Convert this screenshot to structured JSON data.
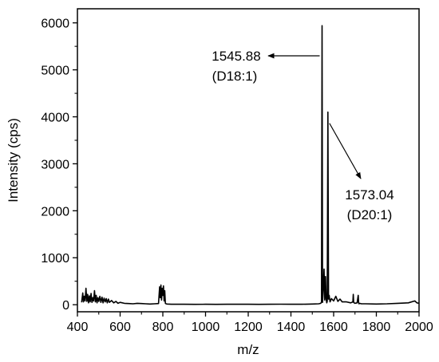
{
  "chart_data": {
    "type": "line",
    "xlabel": "m/z",
    "ylabel": "Intensity (cps)",
    "xlim": [
      400,
      2000
    ],
    "ylim": [
      -150,
      6300
    ],
    "xticks": [
      400,
      600,
      800,
      1000,
      1200,
      1400,
      1600,
      1800,
      2000
    ],
    "yticks": [
      0,
      1000,
      2000,
      3000,
      4000,
      5000,
      6000
    ],
    "grid": false,
    "legend": "none",
    "series": [
      {
        "color": "#000000",
        "x": [
          420,
          425,
          428,
          432,
          436,
          440,
          444,
          448,
          452,
          456,
          460,
          464,
          468,
          472,
          476,
          480,
          484,
          488,
          492,
          496,
          500,
          505,
          510,
          515,
          520,
          525,
          530,
          535,
          540,
          545,
          550,
          560,
          570,
          580,
          590,
          600,
          620,
          640,
          660,
          680,
          700,
          720,
          740,
          760,
          780,
          785,
          788,
          791,
          794,
          797,
          800,
          803,
          806,
          809,
          812,
          815,
          820,
          840,
          860,
          900,
          950,
          1000,
          1050,
          1100,
          1150,
          1200,
          1250,
          1300,
          1350,
          1400,
          1450,
          1500,
          1530,
          1540,
          1543,
          1545.88,
          1548,
          1551,
          1555,
          1558,
          1560,
          1562,
          1565,
          1568,
          1570,
          1573.04,
          1576,
          1579,
          1583,
          1590,
          1600,
          1610,
          1620,
          1630,
          1640,
          1660,
          1680,
          1690,
          1692,
          1694,
          1696,
          1700,
          1710,
          1715,
          1717,
          1719,
          1722,
          1730,
          1750,
          1800,
          1850,
          1900,
          1950,
          1980,
          1990,
          2000
        ],
        "values": [
          50,
          250,
          60,
          180,
          80,
          350,
          70,
          220,
          40,
          190,
          60,
          240,
          50,
          150,
          80,
          300,
          60,
          200,
          40,
          150,
          70,
          180,
          50,
          160,
          40,
          140,
          60,
          130,
          40,
          120,
          50,
          90,
          40,
          70,
          30,
          50,
          30,
          25,
          20,
          30,
          25,
          20,
          15,
          20,
          25,
          380,
          150,
          420,
          100,
          350,
          200,
          400,
          80,
          300,
          30,
          20,
          15,
          10,
          12,
          10,
          8,
          10,
          8,
          10,
          10,
          10,
          8,
          10,
          12,
          10,
          10,
          15,
          20,
          30,
          60,
          5940,
          50,
          300,
          760,
          100,
          250,
          600,
          120,
          40,
          80,
          4100,
          120,
          200,
          60,
          130,
          80,
          180,
          70,
          120,
          60,
          60,
          40,
          60,
          220,
          50,
          40,
          30,
          40,
          200,
          40,
          20,
          30,
          20,
          20,
          15,
          20,
          30,
          40,
          80,
          40,
          30
        ],
        "peaks": [
          {
            "x": 1545.88,
            "y": 5940,
            "label_value": "1545.88",
            "label_note": "(D18:1)"
          },
          {
            "x": 1573.04,
            "y": 4100,
            "label_value": "1573.04",
            "label_note": "(D20:1)"
          }
        ]
      }
    ]
  }
}
